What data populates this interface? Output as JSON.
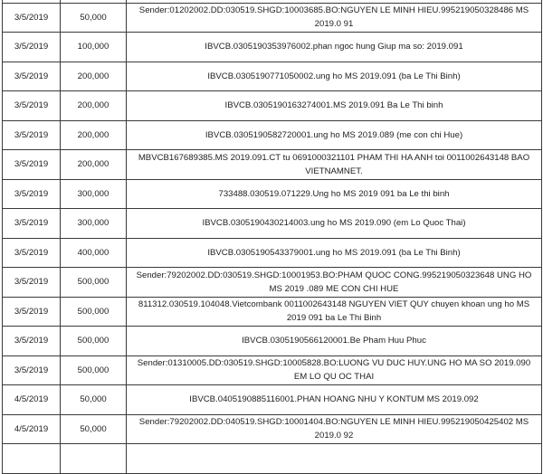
{
  "rows": [
    {
      "date": "",
      "amount": "",
      "description": ""
    },
    {
      "date": "3/5/2019",
      "amount": "50,000",
      "description": "Sender:01202002.DD:030519.SHGD:10003685.BO:NGUYEN LE MINH HIEU.995219050328486 MS 2019.0 91"
    },
    {
      "date": "3/5/2019",
      "amount": "100,000",
      "description": "IBVCB.0305190353976002.phan ngoc hung Giup ma so: 2019.091"
    },
    {
      "date": "3/5/2019",
      "amount": "200,000",
      "description": "IBVCB.0305190771050002.ung ho MS 2019.091 (ba Le Thi Binh)"
    },
    {
      "date": "3/5/2019",
      "amount": "200,000",
      "description": "IBVCB.0305190163274001.MS 2019.091 Ba Le Thi binh"
    },
    {
      "date": "3/5/2019",
      "amount": "200,000",
      "description": "IBVCB.0305190582720001.ung ho MS 2019.089 (me con chi Hue)"
    },
    {
      "date": "3/5/2019",
      "amount": "200,000",
      "description": "MBVCB167689385.MS 2019.091.CT tu 0691000321101 PHAM THI HA ANH toi 0011002643148 BAO VIETNAMNET."
    },
    {
      "date": "3/5/2019",
      "amount": "300,000",
      "description": "733488.030519.071229.Ung ho MS 2019 091 ba Le thi binh"
    },
    {
      "date": "3/5/2019",
      "amount": "300,000",
      "description": "IBVCB.0305190430214003.ung ho MS 2019.090 (em Lo Quoc Thai)"
    },
    {
      "date": "3/5/2019",
      "amount": "400,000",
      "description": "IBVCB.0305190543379001.ung ho MS 2019.091 (ba Le Thi Binh)"
    },
    {
      "date": "3/5/2019",
      "amount": "500,000",
      "description": "Sender:79202002.DD:030519.SHGD:10001953.BO:PHAM QUOC CONG.995219050323648 UNG HO MS 2019 .089 ME CON CHI HUE"
    },
    {
      "date": "3/5/2019",
      "amount": "500,000",
      "description": "811312.030519.104048.Vietcombank 0011002643148 NGUYEN VIET QUY chuyen khoan ung ho MS 2019 091 ba Le Thi Binh"
    },
    {
      "date": "3/5/2019",
      "amount": "500,000",
      "description": "IBVCB.0305190566120001.Be Pham Huu Phuc"
    },
    {
      "date": "3/5/2019",
      "amount": "500,000",
      "description": "Sender:01310005.DD:030519.SHGD:10005828.BO:LUONG VU DUC HUY.UNG HO MA SO 2019.090 EM LO QU OC THAI"
    },
    {
      "date": "4/5/2019",
      "amount": "50,000",
      "description": "IBVCB.0405190885116001.PHAN HOANG NHU Y KONTUM MS 2019.092"
    },
    {
      "date": "4/5/2019",
      "amount": "50,000",
      "description": "Sender:79202002.DD:040519.SHGD:10001404.BO:NGUYEN LE MINH HIEU.995219050425402 MS 2019.0 92"
    },
    {
      "date": "",
      "amount": "",
      "description": ""
    }
  ]
}
